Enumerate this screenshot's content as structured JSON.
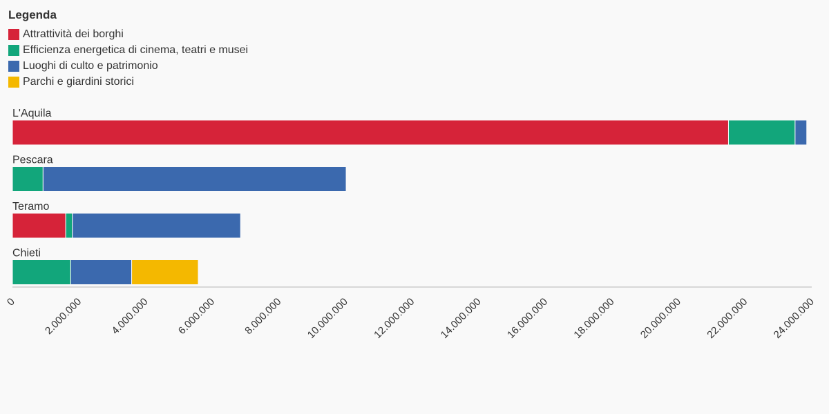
{
  "legend": {
    "title": "Legenda",
    "items": [
      {
        "label": "Attrattività dei borghi",
        "color": "#d62339"
      },
      {
        "label": "Efficienza energetica di cinema, teatri e musei",
        "color": "#12a67b"
      },
      {
        "label": "Luoghi di culto e patrimonio",
        "color": "#3b69ae"
      },
      {
        "label": "Parchi e giardini storici",
        "color": "#f4b800"
      }
    ]
  },
  "chart_data": {
    "type": "bar",
    "orientation": "horizontal",
    "stacked": true,
    "categories": [
      "L'Aquila",
      "Pescara",
      "Teramo",
      "Chieti"
    ],
    "series": [
      {
        "name": "Attrattività dei borghi",
        "color": "#d62339",
        "values": [
          21500000,
          0,
          1600000,
          0
        ]
      },
      {
        "name": "Efficienza energetica di cinema, teatri e musei",
        "color": "#12a67b",
        "values": [
          2000000,
          920000,
          200000,
          1750000
        ]
      },
      {
        "name": "Luoghi di culto e patrimonio",
        "color": "#3b69ae",
        "values": [
          350000,
          9100000,
          5050000,
          1830000
        ]
      },
      {
        "name": "Parchi e giardini storici",
        "color": "#f4b800",
        "values": [
          0,
          0,
          0,
          2000000
        ]
      }
    ],
    "xlim": [
      0,
      24000000
    ],
    "xticks": [
      0,
      2000000,
      4000000,
      6000000,
      8000000,
      10000000,
      12000000,
      14000000,
      16000000,
      18000000,
      20000000,
      22000000,
      24000000
    ],
    "xtick_labels": [
      "0",
      "2.000.000",
      "4.000.000",
      "6.000.000",
      "8.000.000",
      "10.000.000",
      "12.000.000",
      "14.000.000",
      "16.000.000",
      "18.000.000",
      "20.000.000",
      "22.000.000",
      "24.000.000"
    ],
    "legend_position": "top-left",
    "grid": false
  }
}
